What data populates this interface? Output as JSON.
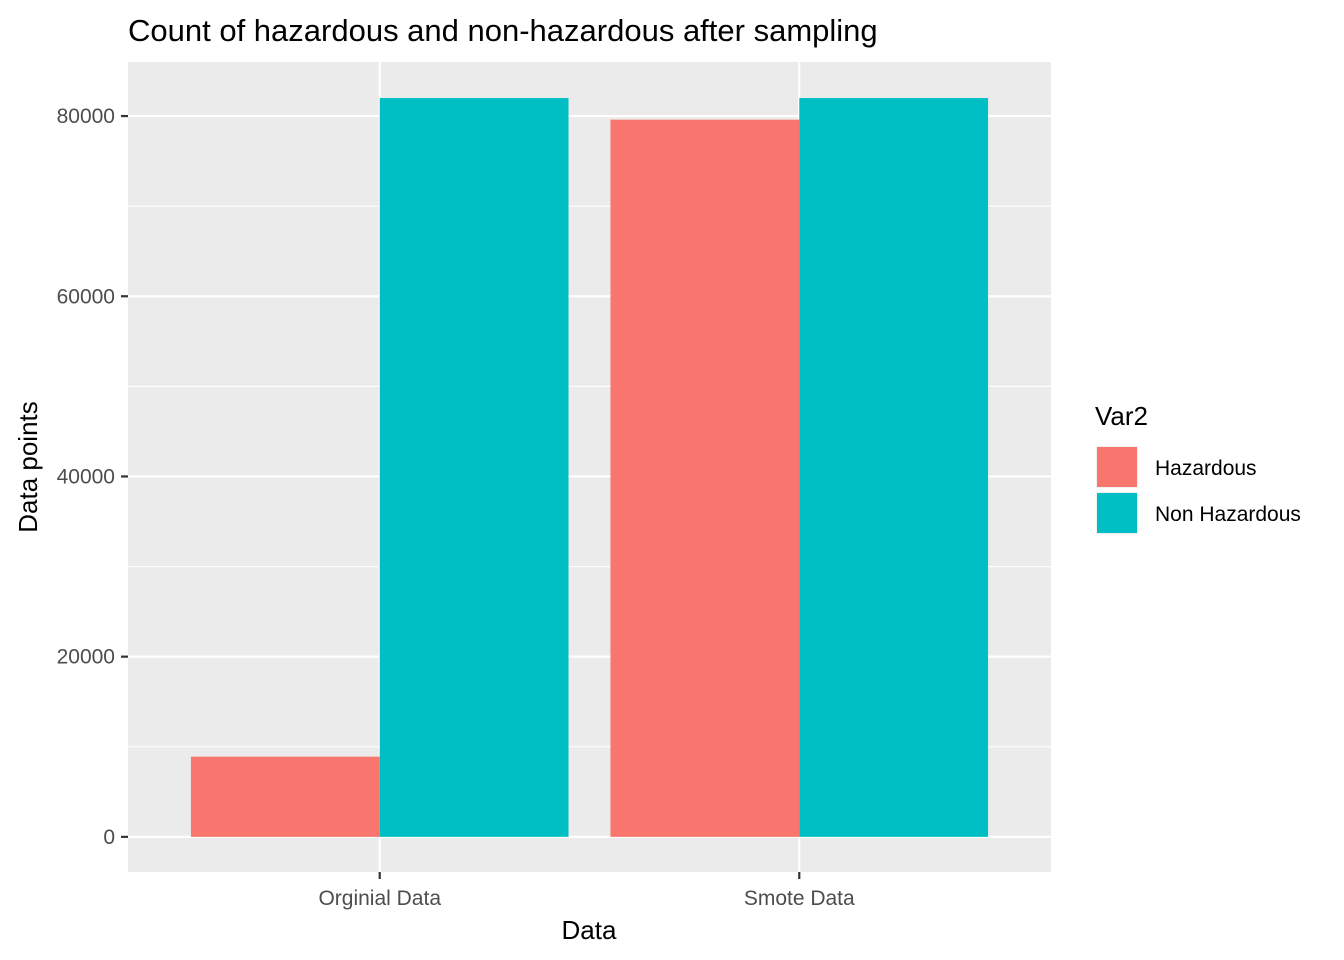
{
  "chart_data": {
    "type": "bar",
    "title": "Count of hazardous and non-hazardous after sampling",
    "xlabel": "Data",
    "ylabel": "Data points",
    "categories": [
      "Orginial Data",
      "Smote Data"
    ],
    "series": [
      {
        "name": "Hazardous",
        "color": "#F8766D",
        "values": [
          8900,
          79600
        ]
      },
      {
        "name": "Non Hazardous",
        "color": "#00BFC4",
        "values": [
          82000,
          82000
        ]
      }
    ],
    "ylim": [
      -3900,
      86000
    ],
    "yticks": [
      0,
      20000,
      40000,
      60000,
      80000
    ],
    "grid": true,
    "legend": {
      "title": "Var2",
      "position": "right"
    },
    "colors": {
      "panel": "#EBEBEB",
      "grid": "#FFFFFF",
      "tick_text": "#4D4D4D"
    }
  }
}
